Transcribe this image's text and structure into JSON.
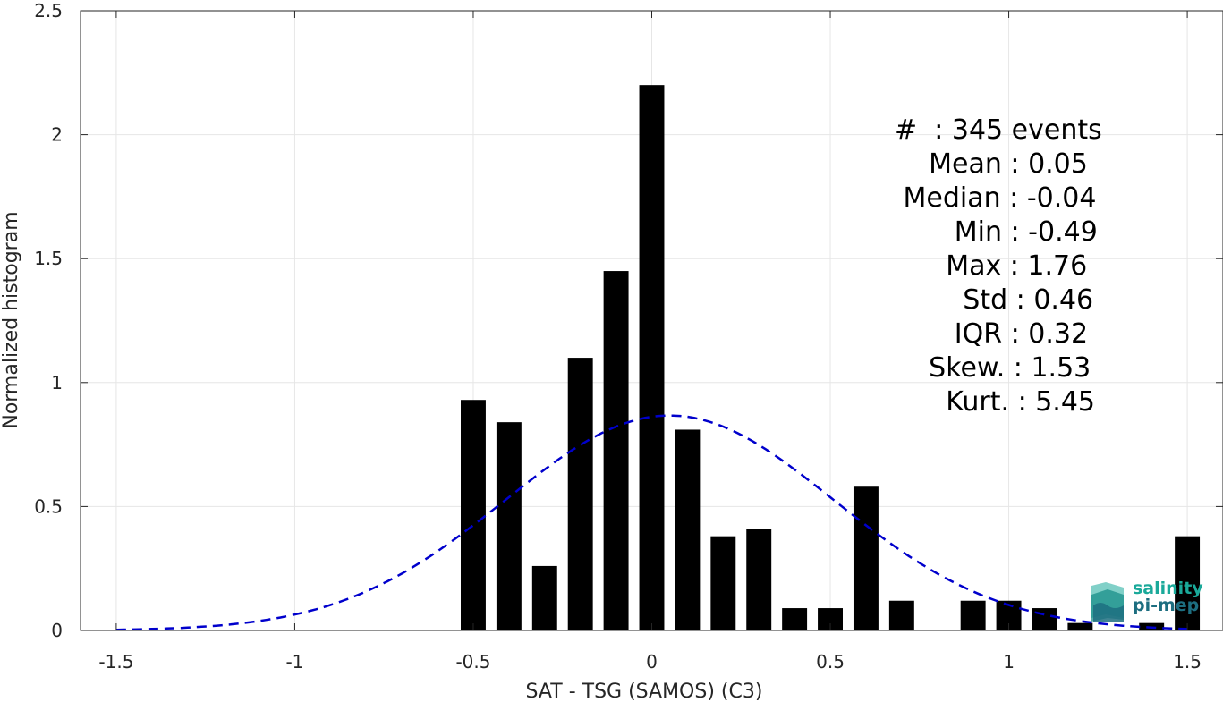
{
  "chart_data": {
    "type": "bar",
    "xlabel": "SAT - TSG (SAMOS) (C3)",
    "ylabel": "Normalized histogram",
    "xlim": [
      -1.6,
      1.6
    ],
    "ylim": [
      0,
      2.5
    ],
    "xticks": [
      "-1.5",
      "-1",
      "-0.5",
      "0",
      "0.5",
      "1",
      "1.5"
    ],
    "xtick_values": [
      -1.5,
      -1,
      -0.5,
      0,
      0.5,
      1,
      1.5
    ],
    "yticks": [
      "0",
      "0.5",
      "1",
      "1.5",
      "2",
      "2.5"
    ],
    "ytick_values": [
      0,
      0.5,
      1,
      1.5,
      2,
      2.5
    ],
    "grid": true,
    "bar_color": "#000000",
    "bin_width": 0.1,
    "bars": [
      {
        "x": -0.5,
        "value": 0.93
      },
      {
        "x": -0.4,
        "value": 0.84
      },
      {
        "x": -0.3,
        "value": 0.26
      },
      {
        "x": -0.2,
        "value": 1.1
      },
      {
        "x": -0.1,
        "value": 1.45
      },
      {
        "x": 0.0,
        "value": 2.2
      },
      {
        "x": 0.1,
        "value": 0.81
      },
      {
        "x": 0.2,
        "value": 0.38
      },
      {
        "x": 0.3,
        "value": 0.41
      },
      {
        "x": 0.4,
        "value": 0.09
      },
      {
        "x": 0.5,
        "value": 0.09
      },
      {
        "x": 0.6,
        "value": 0.58
      },
      {
        "x": 0.7,
        "value": 0.12
      },
      {
        "x": 0.9,
        "value": 0.12
      },
      {
        "x": 1.0,
        "value": 0.12
      },
      {
        "x": 1.1,
        "value": 0.09
      },
      {
        "x": 1.2,
        "value": 0.03
      },
      {
        "x": 1.4,
        "value": 0.03
      },
      {
        "x": 1.5,
        "value": 0.38
      }
    ],
    "fit_curve": {
      "style": "dashed",
      "color": "#0000cc",
      "mean": 0.05,
      "std": 0.46,
      "x_range": [
        -1.5,
        1.5
      ]
    }
  },
  "stats": {
    "lines": [
      "#  : 345 events",
      "    Mean : 0.05",
      " Median : -0.04",
      "       Min : -0.49",
      "      Max : 1.76",
      "        Std : 0.46",
      "       IQR : 0.32",
      "    Skew. : 1.53",
      "      Kurt. : 5.45"
    ]
  },
  "logo": {
    "line1": "salinity",
    "line2": "pi-mep",
    "color1": "#1aa99a",
    "color2": "#1d6e80"
  }
}
